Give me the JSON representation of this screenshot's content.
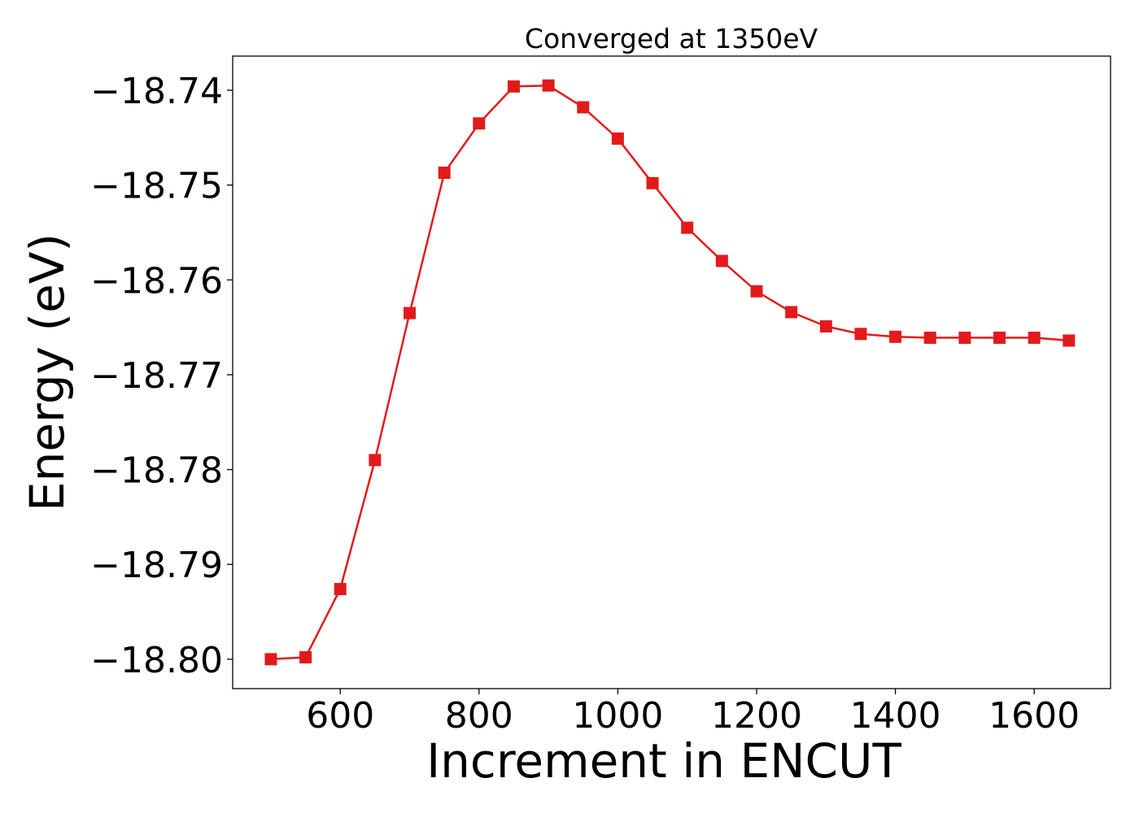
{
  "chart_data": {
    "type": "line",
    "title": "Converged at 1350eV",
    "xlabel": "Increment in ENCUT",
    "ylabel": "Energy (eV)",
    "xlim": [
      445,
      1710
    ],
    "ylim": [
      -18.8031,
      -18.7364
    ],
    "xticks": [
      600,
      800,
      1000,
      1200,
      1400,
      1600
    ],
    "yticks": [
      -18.74,
      -18.75,
      -18.76,
      -18.77,
      -18.78,
      -18.79,
      -18.8
    ],
    "ytick_labels": [
      "−18.74",
      "−18.75",
      "−18.76",
      "−18.77",
      "−18.78",
      "−18.79",
      "−18.80"
    ],
    "grid": false,
    "series": [
      {
        "color": "#e31a1c",
        "marker": "square",
        "x": [
          500,
          550,
          600,
          650,
          700,
          750,
          800,
          850,
          900,
          950,
          1000,
          1050,
          1100,
          1150,
          1200,
          1250,
          1300,
          1350,
          1400,
          1450,
          1500,
          1550,
          1600,
          1650
        ],
        "y": [
          -18.8,
          -18.7998,
          -18.7926,
          -18.779,
          -18.7635,
          -18.7487,
          -18.7435,
          -18.7396,
          -18.7395,
          -18.7418,
          -18.7451,
          -18.7498,
          -18.7545,
          -18.758,
          -18.7612,
          -18.7634,
          -18.7649,
          -18.7657,
          -18.766,
          -18.7661,
          -18.7661,
          -18.7661,
          -18.7661,
          -18.7664
        ]
      }
    ]
  }
}
